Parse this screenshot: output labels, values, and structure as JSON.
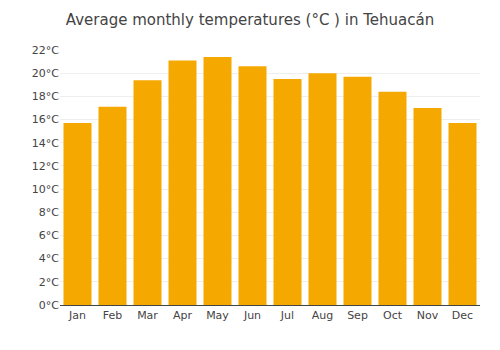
{
  "chart_data": {
    "type": "bar",
    "title": "Average monthly temperatures (°C ) in Tehuacán",
    "categories": [
      "Jan",
      "Feb",
      "Mar",
      "Apr",
      "May",
      "Jun",
      "Jul",
      "Aug",
      "Sep",
      "Oct",
      "Nov",
      "Dec"
    ],
    "values": [
      15.7,
      17.1,
      19.4,
      21.1,
      21.4,
      20.6,
      19.5,
      20.0,
      19.7,
      18.4,
      17.0,
      15.7
    ],
    "color": "#F5A800",
    "ylim": [
      0,
      22
    ],
    "yticks": [
      {
        "value": 0,
        "label": "0°C"
      },
      {
        "value": 2,
        "label": "2°C"
      },
      {
        "value": 4,
        "label": "4°C"
      },
      {
        "value": 6,
        "label": "6°C"
      },
      {
        "value": 8,
        "label": "8°C"
      },
      {
        "value": 10,
        "label": "10°C"
      },
      {
        "value": 12,
        "label": "12°C"
      },
      {
        "value": 14,
        "label": "14°C"
      },
      {
        "value": 16,
        "label": "16°C"
      },
      {
        "value": 18,
        "label": "18°C"
      },
      {
        "value": 20,
        "label": "20°C"
      },
      {
        "value": 22,
        "label": "22°C"
      }
    ],
    "grid": true
  }
}
